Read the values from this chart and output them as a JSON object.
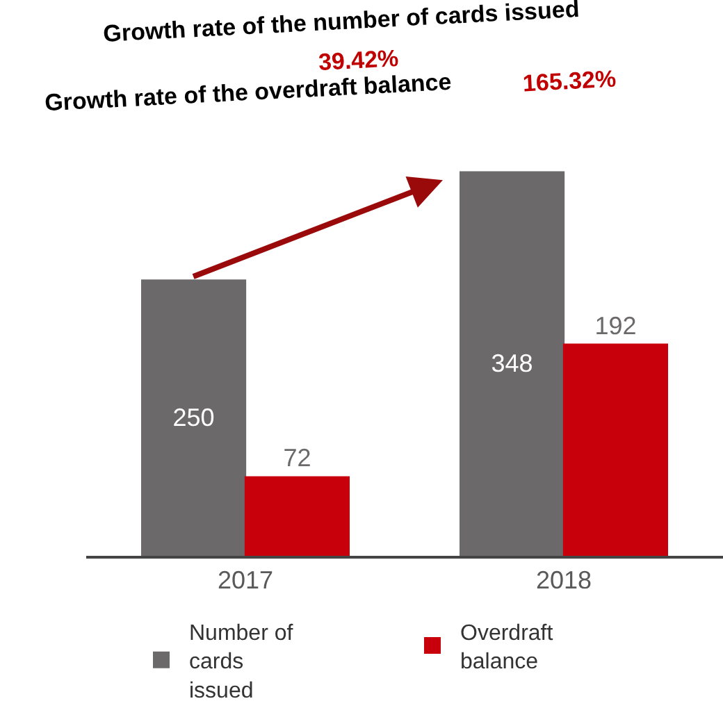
{
  "chart_data": {
    "type": "bar",
    "categories": [
      "2017",
      "2018"
    ],
    "series": [
      {
        "name": "Number of cards issued",
        "color": "#6b6969",
        "values": [
          250,
          348
        ]
      },
      {
        "name": "Overdraft balance",
        "color": "#c8000b",
        "values": [
          72,
          192
        ]
      }
    ],
    "data_labels": true,
    "legend": "bottom",
    "annotations": [
      "Growth rate of the number of cards issued",
      "39.42%",
      "Growth rate of the overdraft balance",
      "165.32%"
    ]
  }
}
